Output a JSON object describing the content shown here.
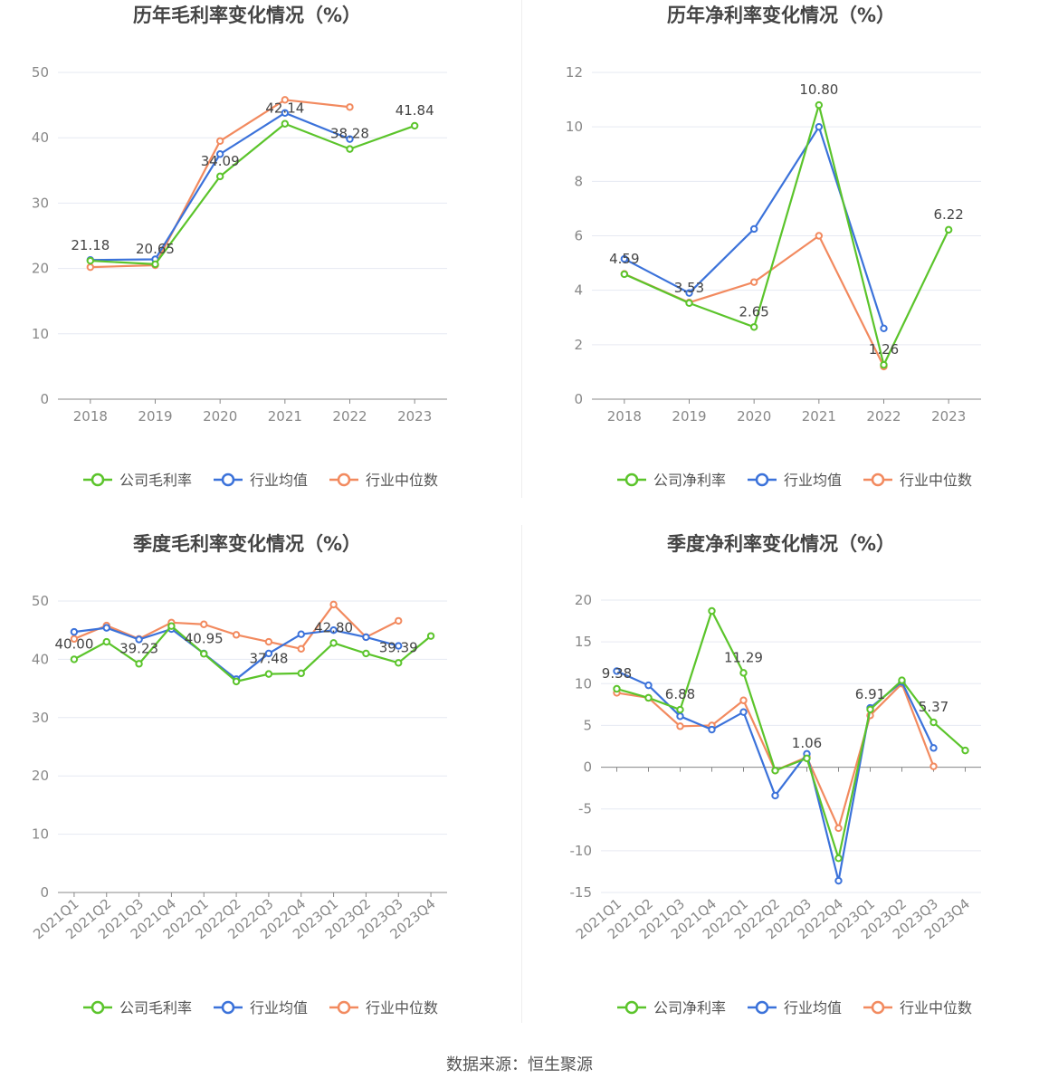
{
  "source": "数据来源：恒生聚源",
  "colors": {
    "company": "#5bc42b",
    "avg": "#3b72da",
    "median": "#f28a5f"
  },
  "chart_data": [
    {
      "type": "line",
      "title": "历年毛利率变化情况（%）",
      "categories": [
        "2018",
        "2019",
        "2020",
        "2021",
        "2022",
        "2023"
      ],
      "ylim": [
        0,
        50
      ],
      "yticks": [
        0,
        10,
        20,
        30,
        40,
        50
      ],
      "series": [
        {
          "name": "公司毛利率",
          "key": "company",
          "values": [
            21.18,
            20.65,
            34.09,
            42.14,
            38.28,
            41.84
          ]
        },
        {
          "name": "行业均值",
          "key": "avg",
          "values": [
            21.3,
            21.4,
            37.5,
            43.8,
            39.8,
            null
          ]
        },
        {
          "name": "行业中位数",
          "key": "median",
          "values": [
            20.2,
            20.5,
            39.5,
            45.8,
            44.7,
            null
          ]
        }
      ],
      "data_labels": [
        "21.18",
        "20.65",
        "34.09",
        "42.14",
        "38.28",
        "41.84"
      ],
      "legend": "bottom-center",
      "grid": true
    },
    {
      "type": "line",
      "title": "历年净利率变化情况（%）",
      "categories": [
        "2018",
        "2019",
        "2020",
        "2021",
        "2022",
        "2023"
      ],
      "ylim": [
        0,
        12
      ],
      "yticks": [
        0,
        2,
        4,
        6,
        8,
        10,
        12
      ],
      "series": [
        {
          "name": "公司净利率",
          "key": "company",
          "values": [
            4.59,
            3.53,
            2.65,
            10.8,
            1.26,
            6.22
          ]
        },
        {
          "name": "行业均值",
          "key": "avg",
          "values": [
            5.15,
            3.9,
            6.25,
            10.0,
            2.6,
            null
          ]
        },
        {
          "name": "行业中位数",
          "key": "median",
          "values": [
            4.6,
            3.55,
            4.3,
            6.0,
            1.2,
            null
          ]
        }
      ],
      "data_labels": [
        "4.59",
        "3.53",
        "2.65",
        "10.80",
        "1.26",
        "6.22"
      ],
      "legend": "bottom-center",
      "grid": true
    },
    {
      "type": "line",
      "title": "季度毛利率变化情况（%）",
      "categories": [
        "2021Q1",
        "2021Q2",
        "2021Q3",
        "2021Q4",
        "2022Q1",
        "2022Q2",
        "2022Q3",
        "2022Q4",
        "2023Q1",
        "2023Q2",
        "2023Q3",
        "2023Q4"
      ],
      "ylim": [
        0,
        50
      ],
      "yticks": [
        0,
        10,
        20,
        30,
        40,
        50
      ],
      "series": [
        {
          "name": "公司毛利率",
          "key": "company",
          "values": [
            40.0,
            43.0,
            39.23,
            45.7,
            40.95,
            36.2,
            37.48,
            37.6,
            42.8,
            41.0,
            39.39,
            44.0
          ]
        },
        {
          "name": "行业均值",
          "key": "avg",
          "values": [
            44.7,
            45.4,
            43.4,
            45.2,
            41.0,
            36.6,
            41.0,
            44.3,
            45.0,
            43.8,
            42.3,
            null
          ]
        },
        {
          "name": "行业中位数",
          "key": "median",
          "values": [
            43.5,
            45.8,
            43.5,
            46.3,
            46.0,
            44.2,
            43.0,
            41.8,
            49.4,
            43.8,
            46.6,
            null
          ]
        }
      ],
      "data_labels": [
        "40.00",
        "",
        "39.23",
        "",
        "40.95",
        "",
        "37.48",
        "",
        "42.80",
        "",
        "39.39",
        ""
      ],
      "legend": "bottom-center",
      "grid": true
    },
    {
      "type": "line",
      "title": "季度净利率变化情况（%）",
      "categories": [
        "2021Q1",
        "2021Q2",
        "2021Q3",
        "2021Q4",
        "2022Q1",
        "2022Q2",
        "2022Q3",
        "2022Q4",
        "2023Q1",
        "2023Q2",
        "2023Q3",
        "2023Q4"
      ],
      "ylim": [
        -15,
        20
      ],
      "yticks": [
        -15,
        -10,
        -5,
        0,
        5,
        10,
        15,
        20
      ],
      "series": [
        {
          "name": "公司净利率",
          "key": "company",
          "values": [
            9.38,
            8.3,
            6.88,
            18.7,
            11.29,
            -0.4,
            1.06,
            -10.9,
            6.91,
            10.4,
            5.37,
            2.0
          ]
        },
        {
          "name": "行业均值",
          "key": "avg",
          "values": [
            11.5,
            9.8,
            6.1,
            4.5,
            6.6,
            -3.4,
            1.6,
            -13.6,
            7.1,
            10.2,
            2.3,
            null
          ]
        },
        {
          "name": "行业中位数",
          "key": "median",
          "values": [
            8.9,
            8.3,
            4.9,
            5.0,
            8.0,
            -0.4,
            1.2,
            -7.3,
            6.2,
            10.0,
            0.1,
            null
          ]
        }
      ],
      "data_labels": [
        "9.38",
        "",
        "6.88",
        "",
        "11.29",
        "",
        "1.06",
        "",
        "6.91",
        "",
        "5.37",
        ""
      ],
      "legend": "bottom-center",
      "grid": true
    }
  ]
}
